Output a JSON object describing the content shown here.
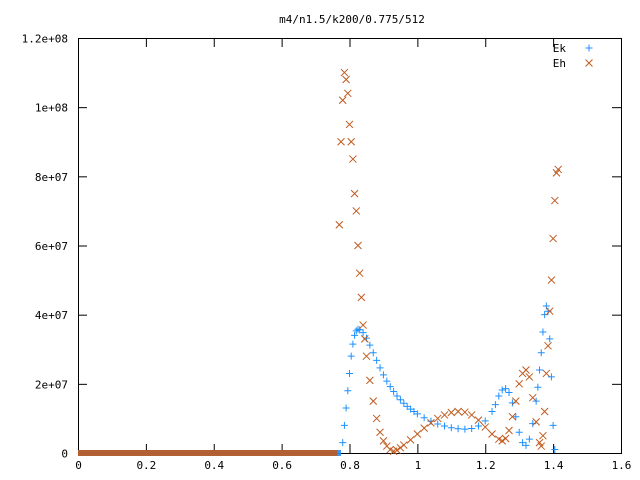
{
  "chart_data": {
    "type": "scatter",
    "title": "m4/n1.5/k200/0.775/512",
    "xlabel": "",
    "ylabel": "",
    "xlim": [
      0,
      1.6
    ],
    "ylim": [
      0,
      120000000
    ],
    "x_ticks": [
      0,
      0.2,
      0.4,
      0.6,
      0.8,
      1,
      1.2,
      1.4,
      1.6
    ],
    "x_tick_labels": [
      "0",
      "0.2",
      "0.4",
      "0.6",
      "0.8",
      "1",
      "1.2",
      "1.4",
      "1.6"
    ],
    "y_ticks": [
      0,
      20000000,
      40000000,
      60000000,
      80000000,
      100000000,
      120000000
    ],
    "y_tick_labels": [
      "0",
      "2e+07",
      "4e+07",
      "6e+07",
      "8e+07",
      "1e+08",
      "1.2e+08"
    ],
    "grid": false,
    "legend_position": "top-right",
    "series": [
      {
        "name": "Ek",
        "marker": "plus",
        "color": "#1e90ff",
        "points": [
          [
            0.78,
            3000000
          ],
          [
            0.785,
            8000000
          ],
          [
            0.79,
            13000000
          ],
          [
            0.795,
            18000000
          ],
          [
            0.8,
            23000000
          ],
          [
            0.805,
            28000000
          ],
          [
            0.81,
            31500000
          ],
          [
            0.815,
            34000000
          ],
          [
            0.82,
            35300000
          ],
          [
            0.825,
            35800000
          ],
          [
            0.83,
            35600000
          ],
          [
            0.84,
            34800000
          ],
          [
            0.85,
            33200000
          ],
          [
            0.86,
            31200000
          ],
          [
            0.87,
            29000000
          ],
          [
            0.88,
            26800000
          ],
          [
            0.89,
            24600000
          ],
          [
            0.9,
            22600000
          ],
          [
            0.91,
            20800000
          ],
          [
            0.92,
            19200000
          ],
          [
            0.93,
            17800000
          ],
          [
            0.94,
            16500000
          ],
          [
            0.95,
            15400000
          ],
          [
            0.96,
            14400000
          ],
          [
            0.97,
            13500000
          ],
          [
            0.98,
            12700000
          ],
          [
            0.99,
            12000000
          ],
          [
            1.0,
            11300000
          ],
          [
            1.02,
            10200000
          ],
          [
            1.04,
            9200000
          ],
          [
            1.06,
            8400000
          ],
          [
            1.08,
            7800000
          ],
          [
            1.1,
            7300000
          ],
          [
            1.12,
            7000000
          ],
          [
            1.14,
            6900000
          ],
          [
            1.16,
            7100000
          ],
          [
            1.18,
            7800000
          ],
          [
            1.2,
            9300000
          ],
          [
            1.22,
            12000000
          ],
          [
            1.23,
            14000000
          ],
          [
            1.24,
            16500000
          ],
          [
            1.25,
            18200000
          ],
          [
            1.26,
            18600000
          ],
          [
            1.27,
            17500000
          ],
          [
            1.28,
            14500000
          ],
          [
            1.29,
            10500000
          ],
          [
            1.3,
            6000000
          ],
          [
            1.31,
            3000000
          ],
          [
            1.32,
            2200000
          ],
          [
            1.33,
            4000000
          ],
          [
            1.34,
            8500000
          ],
          [
            1.35,
            15000000
          ],
          [
            1.355,
            19000000
          ],
          [
            1.36,
            24000000
          ],
          [
            1.365,
            29000000
          ],
          [
            1.37,
            35000000
          ],
          [
            1.375,
            40000000
          ],
          [
            1.38,
            42500000
          ],
          [
            1.385,
            41000000
          ],
          [
            1.39,
            33000000
          ],
          [
            1.395,
            22000000
          ],
          [
            1.4,
            8000000
          ],
          [
            1.405,
            1000000
          ]
        ]
      },
      {
        "name": "Eh",
        "marker": "cross",
        "color": "#c05a1e",
        "points": [
          [
            0.77,
            66000000
          ],
          [
            0.775,
            90000000
          ],
          [
            0.78,
            102000000
          ],
          [
            0.785,
            110000000
          ],
          [
            0.79,
            108000000
          ],
          [
            0.795,
            104000000
          ],
          [
            0.8,
            95000000
          ],
          [
            0.805,
            90000000
          ],
          [
            0.81,
            85000000
          ],
          [
            0.815,
            75000000
          ],
          [
            0.82,
            70000000
          ],
          [
            0.825,
            60000000
          ],
          [
            0.83,
            52000000
          ],
          [
            0.835,
            45000000
          ],
          [
            0.84,
            37000000
          ],
          [
            0.845,
            33000000
          ],
          [
            0.85,
            28000000
          ],
          [
            0.86,
            21000000
          ],
          [
            0.87,
            15000000
          ],
          [
            0.88,
            10000000
          ],
          [
            0.89,
            6000000
          ],
          [
            0.9,
            3500000
          ],
          [
            0.91,
            2000000
          ],
          [
            0.92,
            1000000
          ],
          [
            0.93,
            500000
          ],
          [
            0.94,
            800000
          ],
          [
            0.95,
            1500000
          ],
          [
            0.96,
            2300000
          ],
          [
            0.98,
            3800000
          ],
          [
            1.0,
            5500000
          ],
          [
            1.02,
            7200000
          ],
          [
            1.04,
            8700000
          ],
          [
            1.06,
            10000000
          ],
          [
            1.08,
            11000000
          ],
          [
            1.1,
            11700000
          ],
          [
            1.12,
            12000000
          ],
          [
            1.14,
            11800000
          ],
          [
            1.16,
            11000000
          ],
          [
            1.18,
            9500000
          ],
          [
            1.2,
            7500000
          ],
          [
            1.22,
            5500000
          ],
          [
            1.24,
            4000000
          ],
          [
            1.25,
            3500000
          ],
          [
            1.26,
            4200000
          ],
          [
            1.27,
            6500000
          ],
          [
            1.28,
            10500000
          ],
          [
            1.29,
            15000000
          ],
          [
            1.3,
            20000000
          ],
          [
            1.31,
            23000000
          ],
          [
            1.32,
            24000000
          ],
          [
            1.33,
            22000000
          ],
          [
            1.34,
            16000000
          ],
          [
            1.35,
            9000000
          ],
          [
            1.36,
            3000000
          ],
          [
            1.365,
            2000000
          ],
          [
            1.37,
            5000000
          ],
          [
            1.375,
            12000000
          ],
          [
            1.38,
            23000000
          ],
          [
            1.385,
            31000000
          ],
          [
            1.39,
            41000000
          ],
          [
            1.395,
            50000000
          ],
          [
            1.4,
            62000000
          ],
          [
            1.405,
            73000000
          ],
          [
            1.41,
            81000000
          ],
          [
            1.415,
            82000000
          ]
        ]
      }
    ],
    "baseline_segments": [
      {
        "series": "Ek",
        "x_from": 0,
        "x_to": 0.775,
        "y": 0
      },
      {
        "series": "Eh",
        "x_from": 0,
        "x_to": 0.765,
        "y": 0
      }
    ]
  }
}
